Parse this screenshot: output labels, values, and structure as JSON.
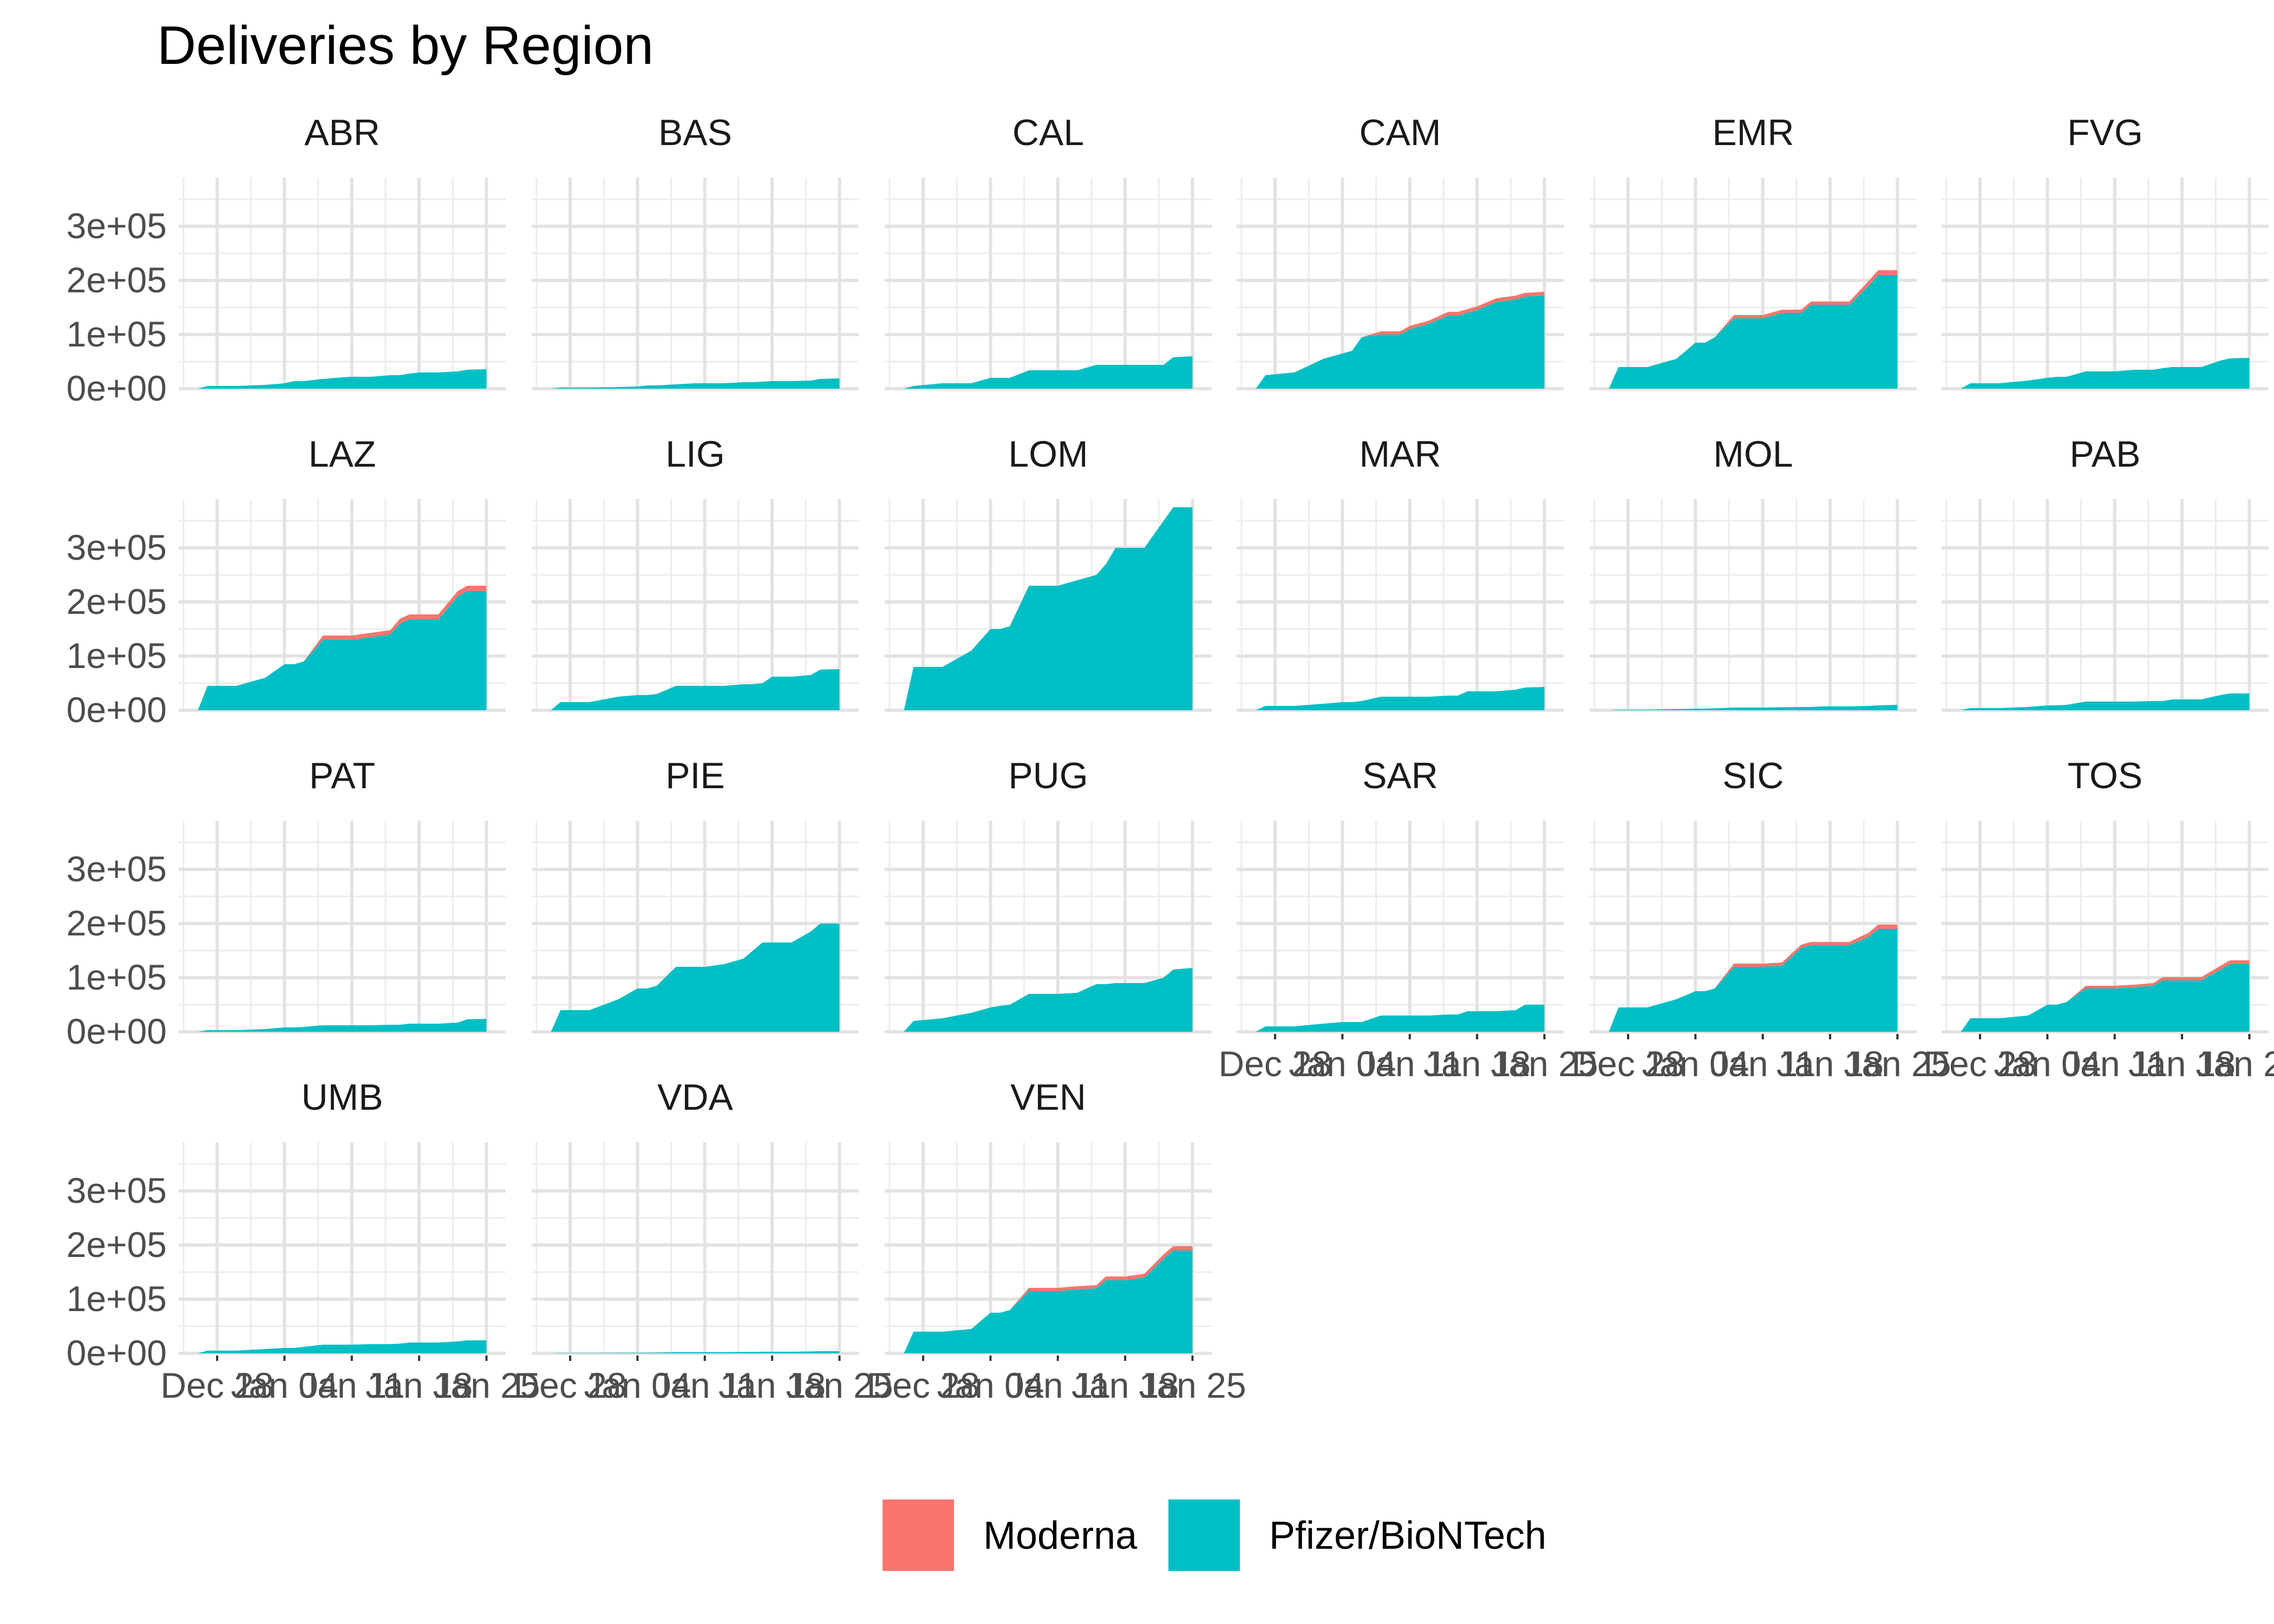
{
  "chart_data": {
    "type": "area",
    "title": "Deliveries by Region",
    "xlabel": "",
    "ylabel": "",
    "x_dates": [
      "Dec 28",
      "Jan 04",
      "Jan 11",
      "Jan 18",
      "Jan 25"
    ],
    "x_tick_labels": [
      "Dec 28",
      "Jan 04",
      "Jan 11",
      "Jan 18",
      "Jan 25"
    ],
    "xlim": [
      "2020-12-24",
      "2021-01-27"
    ],
    "ylim": [
      0,
      390000
    ],
    "y_ticks": [
      0,
      100000,
      200000,
      300000
    ],
    "y_tick_labels": [
      "0e+00",
      "1e+05",
      "2e+05",
      "3e+05"
    ],
    "stacked": true,
    "grid": true,
    "legend_position": "bottom",
    "legend": [
      {
        "name": "Moderna",
        "color": "#F8766D"
      },
      {
        "name": "Pfizer/BioNTech",
        "color": "#00BFC4"
      }
    ],
    "facet_layout": {
      "columns": 6,
      "rows": 4
    },
    "date_points": [
      "2020-12-26",
      "2020-12-27",
      "2020-12-30",
      "2021-01-02",
      "2021-01-04",
      "2021-01-05",
      "2021-01-06",
      "2021-01-08",
      "2021-01-10",
      "2021-01-11",
      "2021-01-13",
      "2021-01-15",
      "2021-01-16",
      "2021-01-17",
      "2021-01-18",
      "2021-01-20",
      "2021-01-22",
      "2021-01-23",
      "2021-01-25"
    ],
    "facets": [
      {
        "region": "ABR",
        "pfizer": [
          0,
          5000,
          5000,
          7000,
          10000,
          14000,
          14000,
          18000,
          21000,
          22000,
          22000,
          25000,
          25000,
          28000,
          30000,
          30000,
          32000,
          35000,
          36000
        ],
        "moderna": [
          0,
          0,
          0,
          0,
          0,
          0,
          0,
          0,
          0,
          0,
          0,
          0,
          0,
          0,
          0,
          0,
          0,
          0,
          0
        ]
      },
      {
        "region": "BAS",
        "pfizer": [
          0,
          2000,
          2000,
          3000,
          4000,
          6000,
          6000,
          8000,
          10000,
          10000,
          10000,
          12000,
          12000,
          13000,
          14000,
          14000,
          15000,
          18000,
          19000
        ],
        "moderna": [
          0,
          0,
          0,
          0,
          0,
          0,
          0,
          0,
          0,
          0,
          0,
          0,
          0,
          0,
          0,
          0,
          0,
          0,
          0
        ]
      },
      {
        "region": "CAL",
        "pfizer": [
          0,
          5000,
          10000,
          10000,
          20000,
          20000,
          20000,
          34000,
          34000,
          34000,
          34000,
          44000,
          44000,
          44000,
          44000,
          44000,
          44000,
          58000,
          60000
        ],
        "moderna": [
          0,
          0,
          0,
          0,
          0,
          0,
          0,
          0,
          0,
          0,
          0,
          0,
          0,
          0,
          0,
          0,
          0,
          0,
          0
        ]
      },
      {
        "region": "CAM",
        "pfizer": [
          0,
          25000,
          30000,
          55000,
          65000,
          70000,
          95000,
          100000,
          100000,
          110000,
          120000,
          135000,
          135000,
          140000,
          145000,
          160000,
          165000,
          170000,
          172000
        ],
        "moderna": [
          0,
          0,
          0,
          0,
          0,
          0,
          0,
          6000,
          6000,
          6000,
          6000,
          7000,
          7000,
          7000,
          7000,
          7000,
          7000,
          7000,
          7000
        ]
      },
      {
        "region": "EMR",
        "pfizer": [
          0,
          40000,
          40000,
          55000,
          85000,
          85000,
          95000,
          130000,
          130000,
          130000,
          140000,
          140000,
          155000,
          155000,
          155000,
          155000,
          190000,
          210000,
          210000
        ],
        "moderna": [
          0,
          0,
          0,
          0,
          0,
          0,
          0,
          6000,
          6000,
          6000,
          6000,
          6000,
          6000,
          6000,
          6000,
          6000,
          9000,
          9000,
          9000
        ]
      },
      {
        "region": "FVG",
        "pfizer": [
          0,
          10000,
          10000,
          15000,
          20000,
          22000,
          22000,
          32000,
          32000,
          32000,
          35000,
          35000,
          38000,
          40000,
          40000,
          40000,
          52000,
          56000,
          57000
        ],
        "moderna": [
          0,
          0,
          0,
          0,
          0,
          0,
          0,
          0,
          0,
          0,
          0,
          0,
          0,
          0,
          0,
          0,
          0,
          0,
          0
        ]
      },
      {
        "region": "LAZ",
        "pfizer": [
          0,
          45000,
          45000,
          60000,
          85000,
          85000,
          90000,
          130000,
          130000,
          130000,
          135000,
          140000,
          160000,
          168000,
          168000,
          168000,
          210000,
          220000,
          220000
        ],
        "moderna": [
          0,
          0,
          0,
          0,
          0,
          0,
          0,
          8000,
          8000,
          8000,
          8000,
          8000,
          9000,
          9000,
          9000,
          9000,
          10000,
          10000,
          10000
        ]
      },
      {
        "region": "LIG",
        "pfizer": [
          0,
          15000,
          15000,
          25000,
          28000,
          28000,
          30000,
          45000,
          45000,
          45000,
          45000,
          48000,
          48000,
          50000,
          62000,
          62000,
          65000,
          75000,
          76000
        ],
        "moderna": [
          0,
          0,
          0,
          0,
          0,
          0,
          0,
          0,
          0,
          0,
          0,
          0,
          0,
          0,
          0,
          0,
          0,
          0,
          0
        ]
      },
      {
        "region": "LOM",
        "pfizer": [
          0,
          80000,
          80000,
          110000,
          150000,
          150000,
          155000,
          230000,
          230000,
          230000,
          240000,
          250000,
          270000,
          300000,
          300000,
          300000,
          350000,
          375000,
          375000
        ],
        "moderna": [
          0,
          0,
          0,
          0,
          0,
          0,
          0,
          0,
          0,
          0,
          0,
          0,
          0,
          0,
          0,
          0,
          0,
          0,
          0
        ]
      },
      {
        "region": "MAR",
        "pfizer": [
          0,
          8000,
          8000,
          12000,
          15000,
          15000,
          17000,
          25000,
          25000,
          25000,
          25000,
          27000,
          27000,
          35000,
          35000,
          35000,
          38000,
          42000,
          43000
        ],
        "moderna": [
          0,
          0,
          0,
          0,
          0,
          0,
          0,
          0,
          0,
          0,
          0,
          0,
          0,
          0,
          0,
          0,
          0,
          0,
          0
        ]
      },
      {
        "region": "MOL",
        "pfizer": [
          0,
          1000,
          1000,
          2000,
          3000,
          3000,
          3500,
          5000,
          5000,
          5000,
          5500,
          6000,
          6000,
          7000,
          7000,
          7000,
          8000,
          9000,
          10000
        ],
        "moderna": [
          0,
          0,
          0,
          0,
          0,
          0,
          0,
          0,
          0,
          0,
          0,
          0,
          0,
          0,
          0,
          0,
          0,
          0,
          0
        ]
      },
      {
        "region": "PAB",
        "pfizer": [
          0,
          4000,
          4000,
          6000,
          9000,
          9000,
          10000,
          16000,
          16000,
          16000,
          16000,
          17000,
          17000,
          20000,
          20000,
          20000,
          28000,
          31000,
          31000
        ],
        "moderna": [
          0,
          0,
          0,
          0,
          0,
          0,
          0,
          0,
          0,
          0,
          0,
          0,
          0,
          0,
          0,
          0,
          0,
          0,
          0
        ]
      },
      {
        "region": "PAT",
        "pfizer": [
          0,
          3000,
          3000,
          5000,
          8000,
          8000,
          9000,
          12000,
          12000,
          12000,
          12000,
          13000,
          13000,
          15000,
          15000,
          15000,
          17000,
          23000,
          24000
        ],
        "moderna": [
          0,
          0,
          0,
          0,
          0,
          0,
          0,
          0,
          0,
          0,
          0,
          0,
          0,
          0,
          0,
          0,
          0,
          0,
          0
        ]
      },
      {
        "region": "PIE",
        "pfizer": [
          0,
          40000,
          40000,
          60000,
          80000,
          80000,
          85000,
          120000,
          120000,
          120000,
          125000,
          135000,
          150000,
          165000,
          165000,
          165000,
          185000,
          200000,
          200000
        ],
        "moderna": [
          0,
          0,
          0,
          0,
          0,
          0,
          0,
          0,
          0,
          0,
          0,
          0,
          0,
          0,
          0,
          0,
          0,
          0,
          0
        ]
      },
      {
        "region": "PUG",
        "pfizer": [
          0,
          20000,
          25000,
          35000,
          45000,
          48000,
          50000,
          70000,
          70000,
          70000,
          72000,
          88000,
          88000,
          90000,
          90000,
          90000,
          100000,
          115000,
          118000
        ],
        "moderna": [
          0,
          0,
          0,
          0,
          0,
          0,
          0,
          0,
          0,
          0,
          0,
          0,
          0,
          0,
          0,
          0,
          0,
          0,
          0
        ]
      },
      {
        "region": "SAR",
        "pfizer": [
          0,
          10000,
          10000,
          15000,
          18000,
          18000,
          18000,
          30000,
          30000,
          30000,
          30000,
          32000,
          32000,
          38000,
          38000,
          38000,
          40000,
          50000,
          50000
        ],
        "moderna": [
          0,
          0,
          0,
          0,
          0,
          0,
          0,
          0,
          0,
          0,
          0,
          0,
          0,
          0,
          0,
          0,
          0,
          0,
          0
        ]
      },
      {
        "region": "SIC",
        "pfizer": [
          0,
          45000,
          45000,
          60000,
          75000,
          75000,
          80000,
          120000,
          120000,
          120000,
          122000,
          155000,
          160000,
          160000,
          160000,
          160000,
          175000,
          190000,
          190000
        ],
        "moderna": [
          0,
          0,
          0,
          0,
          0,
          0,
          0,
          6000,
          6000,
          6000,
          6000,
          6000,
          6000,
          6000,
          6000,
          6000,
          8000,
          8000,
          8000
        ]
      },
      {
        "region": "TOS",
        "pfizer": [
          0,
          25000,
          25000,
          30000,
          50000,
          50000,
          55000,
          80000,
          80000,
          80000,
          82000,
          85000,
          95000,
          95000,
          95000,
          95000,
          115000,
          125000,
          125000
        ],
        "moderna": [
          0,
          0,
          0,
          0,
          0,
          0,
          0,
          5000,
          5000,
          5000,
          5000,
          5000,
          6000,
          6000,
          6000,
          6000,
          7000,
          7000,
          7000
        ]
      },
      {
        "region": "UMB",
        "pfizer": [
          0,
          5000,
          5000,
          8000,
          10000,
          10000,
          12000,
          16000,
          16000,
          16000,
          17000,
          17000,
          18000,
          20000,
          20000,
          20000,
          22000,
          24000,
          24000
        ],
        "moderna": [
          0,
          0,
          0,
          0,
          0,
          0,
          0,
          0,
          0,
          0,
          0,
          0,
          0,
          0,
          0,
          0,
          0,
          0,
          0
        ]
      },
      {
        "region": "VDA",
        "pfizer": [
          0,
          500,
          500,
          800,
          1000,
          1000,
          1200,
          2000,
          2000,
          2000,
          2000,
          2500,
          2500,
          3000,
          3000,
          3000,
          3500,
          4000,
          4000
        ],
        "moderna": [
          0,
          0,
          0,
          0,
          0,
          0,
          0,
          0,
          0,
          0,
          0,
          0,
          0,
          0,
          0,
          0,
          0,
          0,
          0
        ]
      },
      {
        "region": "VEN",
        "pfizer": [
          0,
          40000,
          40000,
          45000,
          75000,
          75000,
          80000,
          115000,
          115000,
          115000,
          118000,
          120000,
          135000,
          135000,
          135000,
          140000,
          175000,
          190000,
          190000
        ],
        "moderna": [
          0,
          0,
          0,
          0,
          0,
          0,
          0,
          6000,
          6000,
          6000,
          6000,
          6000,
          7000,
          7000,
          7000,
          7000,
          8000,
          8000,
          8000
        ]
      }
    ]
  }
}
